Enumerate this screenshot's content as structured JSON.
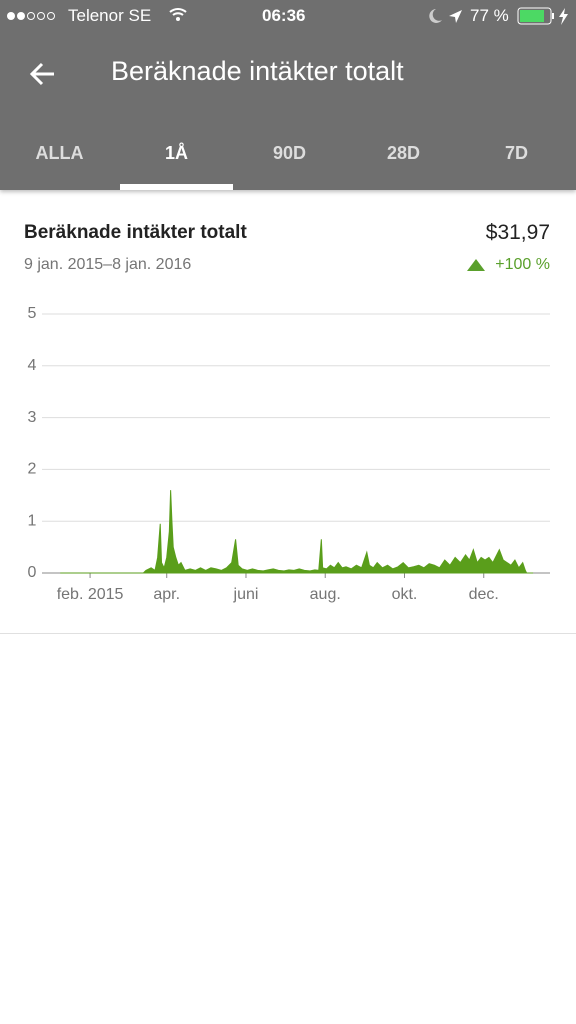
{
  "status_bar": {
    "carrier": "Telenor SE",
    "time": "06:36",
    "battery": "77 %"
  },
  "header": {
    "title": "Beräknade intäkter totalt"
  },
  "tabs": [
    "ALLA",
    "1Å",
    "90D",
    "28D",
    "7D"
  ],
  "summary": {
    "total": "$31,97",
    "change": "+100 %"
  },
  "chart_data": {
    "type": "area",
    "title": "Beräknade intäkter totalt",
    "subtitle": "9 jan. 2015–8 jan. 2016",
    "color": "#5a9e1b",
    "x": [
      0,
      20,
      40,
      60,
      64,
      66,
      70,
      73,
      75,
      77,
      78,
      80,
      82,
      84,
      85,
      86,
      87,
      89,
      91,
      93,
      96,
      100,
      104,
      108,
      112,
      116,
      120,
      124,
      128,
      132,
      135,
      137,
      140,
      144,
      148,
      152,
      156,
      160,
      164,
      168,
      172,
      176,
      180,
      184,
      188,
      192,
      196,
      199,
      201,
      202,
      205,
      208,
      211,
      214,
      217,
      220,
      224,
      228,
      232,
      236,
      238,
      241,
      244,
      248,
      252,
      256,
      260,
      264,
      268,
      272,
      276,
      280,
      284,
      288,
      292,
      296,
      300,
      304,
      308,
      312,
      315,
      318,
      321,
      324,
      327,
      330,
      333,
      336,
      338,
      341,
      344,
      347,
      350,
      353,
      356,
      358,
      359,
      364
    ],
    "values": [
      0,
      0,
      0,
      0,
      0,
      0.05,
      0.1,
      0.05,
      0.3,
      0.95,
      0.2,
      0.1,
      0.3,
      0.8,
      1.6,
      1.0,
      0.5,
      0.3,
      0.15,
      0.2,
      0.05,
      0.08,
      0.05,
      0.1,
      0.05,
      0.1,
      0.08,
      0.05,
      0.1,
      0.2,
      0.65,
      0.15,
      0.08,
      0.05,
      0.08,
      0.05,
      0.04,
      0.06,
      0.08,
      0.05,
      0.04,
      0.06,
      0.05,
      0.08,
      0.05,
      0.04,
      0.06,
      0.05,
      0.65,
      0.1,
      0.08,
      0.15,
      0.1,
      0.2,
      0.1,
      0.12,
      0.08,
      0.15,
      0.1,
      0.4,
      0.15,
      0.1,
      0.2,
      0.1,
      0.15,
      0.08,
      0.12,
      0.2,
      0.1,
      0.12,
      0.15,
      0.1,
      0.18,
      0.15,
      0.1,
      0.25,
      0.15,
      0.3,
      0.2,
      0.35,
      0.25,
      0.45,
      0.2,
      0.3,
      0.25,
      0.3,
      0.2,
      0.35,
      0.45,
      0.25,
      0.2,
      0.15,
      0.25,
      0.1,
      0.2,
      0.05,
      0,
      0
    ],
    "xlim": [
      -14,
      377
    ],
    "xticks": [
      {
        "value": 23,
        "label": "feb. 2015"
      },
      {
        "value": 82,
        "label": "apr."
      },
      {
        "value": 143,
        "label": "juni"
      },
      {
        "value": 204,
        "label": "aug."
      },
      {
        "value": 265,
        "label": "okt."
      },
      {
        "value": 326,
        "label": "dec."
      }
    ],
    "ylim": [
      0,
      5
    ],
    "yticks": [
      0,
      1,
      2,
      3,
      4,
      5
    ],
    "grid": true
  }
}
